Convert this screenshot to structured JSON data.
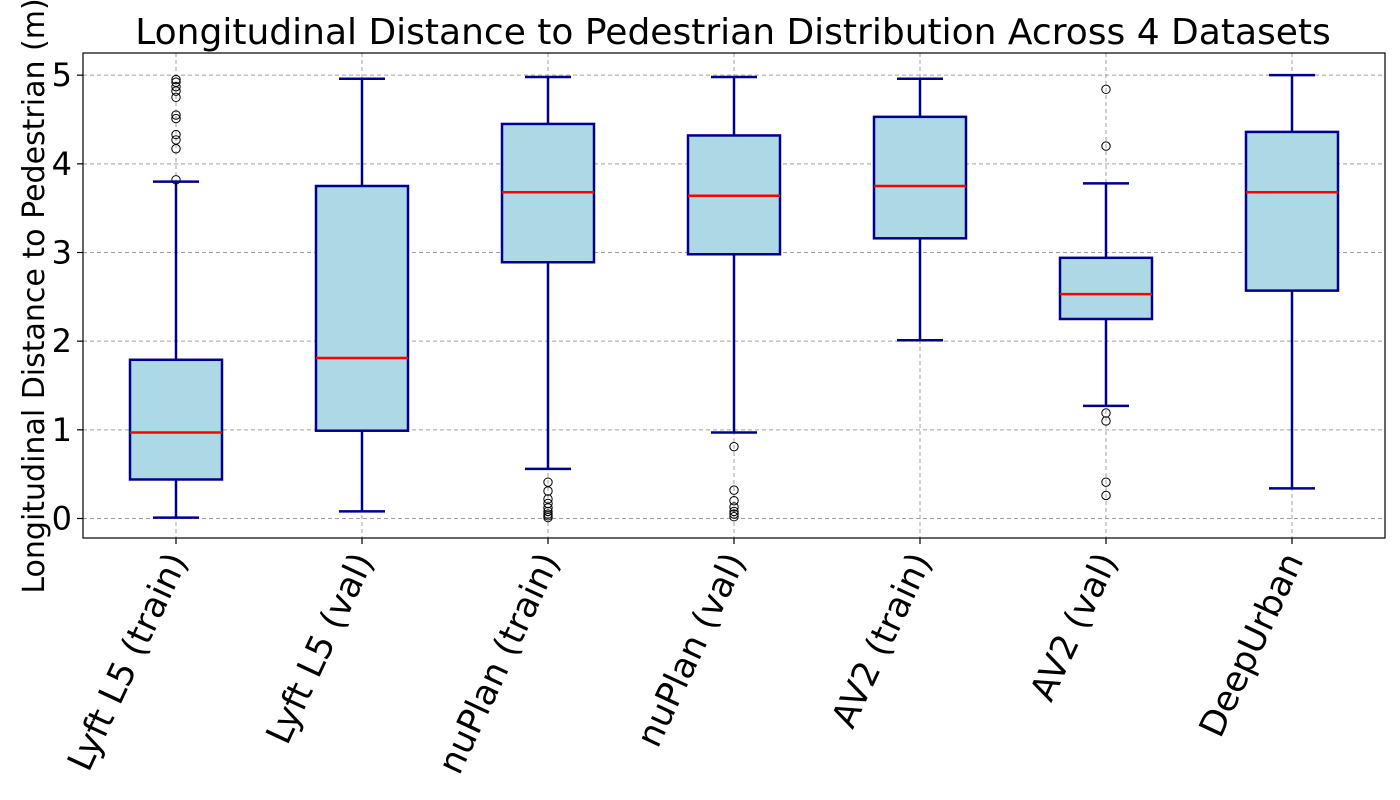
{
  "chart_data": {
    "type": "box",
    "title": "Longitudinal Distance to Pedestrian Distribution Across 4 Datasets",
    "xlabel": "",
    "ylabel": "Longitudinal Distance to Pedestrian (m)",
    "ylim": [
      -0.22,
      5.25
    ],
    "yticks": [
      0,
      1,
      2,
      3,
      4,
      5
    ],
    "grid": true,
    "categories": [
      "Lyft L5 (train)",
      "Lyft L5 (val)",
      "nuPlan (train)",
      "nuPlan (val)",
      "AV2 (train)",
      "AV2 (val)",
      "DeepUrban"
    ],
    "boxes": [
      {
        "whisker_low": 0.01,
        "q1": 0.44,
        "median": 0.97,
        "q3": 1.79,
        "whisker_high": 3.8,
        "outliers": [
          3.82,
          4.17,
          4.27,
          4.33,
          4.51,
          4.55,
          4.75,
          4.82,
          4.87,
          4.92,
          4.95
        ]
      },
      {
        "whisker_low": 0.08,
        "q1": 0.99,
        "median": 1.81,
        "q3": 3.75,
        "whisker_high": 4.96,
        "outliers": []
      },
      {
        "whisker_low": 0.56,
        "q1": 2.89,
        "median": 3.68,
        "q3": 4.45,
        "whisker_high": 4.98,
        "outliers": [
          0.41,
          0.31,
          0.22,
          0.17,
          0.12,
          0.08,
          0.05,
          0.03,
          0.01
        ]
      },
      {
        "whisker_low": 0.97,
        "q1": 2.98,
        "median": 3.64,
        "q3": 4.32,
        "whisker_high": 4.98,
        "outliers": [
          0.81,
          0.32,
          0.2,
          0.13,
          0.08,
          0.05,
          0.02
        ]
      },
      {
        "whisker_low": 2.01,
        "q1": 3.16,
        "median": 3.75,
        "q3": 4.53,
        "whisker_high": 4.96,
        "outliers": []
      },
      {
        "whisker_low": 1.27,
        "q1": 2.25,
        "median": 2.53,
        "q3": 2.94,
        "whisker_high": 3.78,
        "outliers": [
          4.84,
          4.2,
          1.19,
          1.1,
          0.41,
          0.26
        ]
      },
      {
        "whisker_low": 0.34,
        "q1": 2.57,
        "median": 3.68,
        "q3": 4.36,
        "whisker_high": 5.0,
        "outliers": []
      }
    ],
    "colors": {
      "box_fill": "#add8e6",
      "box_edge": "#00008b",
      "median": "#ff0000",
      "grid": "#a0a0a0",
      "outlier": "#000000"
    }
  }
}
